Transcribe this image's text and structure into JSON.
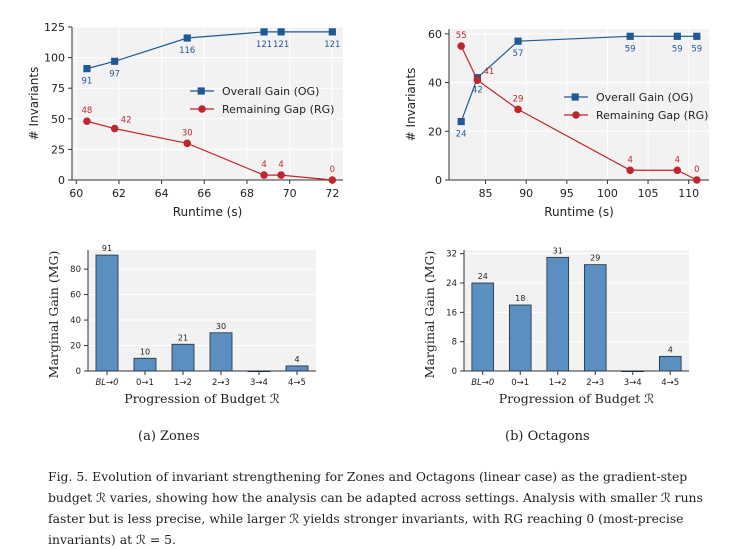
{
  "panels": {
    "a": "(a) Zones",
    "b": "(b) Octagons"
  },
  "caption": {
    "lead": "Fig. 5.",
    "text": "Evolution of invariant strengthening for Zones and Octagons (linear case) as the gradient-step budget ℛ varies, showing how the analysis can be adapted across settings. Analysis with smaller ℛ runs faster but is less precise, while larger ℛ yields stronger invariants, with RG reaching 0 (most-precise invariants) at ℛ = 5."
  },
  "colors": {
    "og": "#1f5a96",
    "rg": "#c0272d",
    "bar": "#5b8fc0",
    "plot_bg": "#f2f2f2"
  },
  "chart_data": [
    {
      "id": "zones_runtime",
      "type": "line",
      "xlabel": "Runtime (s)",
      "ylabel": "# Invariants",
      "xlim": [
        59.8,
        72.5
      ],
      "ylim": [
        0,
        125
      ],
      "xticks": [
        60,
        62,
        64,
        66,
        68,
        70,
        72
      ],
      "yticks": [
        0,
        25,
        50,
        75,
        100,
        125
      ],
      "legend_position": "center-right",
      "series": [
        {
          "name": "Overall Gain (OG)",
          "marker": "square",
          "x": [
            60.5,
            61.8,
            65.2,
            68.8,
            69.6,
            72.0
          ],
          "y": [
            91,
            97,
            116,
            121,
            121,
            121
          ],
          "labels": [
            "91",
            "97",
            "116",
            "121",
            "121",
            "121"
          ]
        },
        {
          "name": "Remaining Gap (RG)",
          "marker": "circle",
          "x": [
            60.5,
            61.8,
            65.2,
            68.8,
            69.6,
            72.0
          ],
          "y": [
            48,
            42,
            30,
            4,
            4,
            0
          ],
          "labels": [
            "48",
            "42",
            "30",
            "4",
            "4",
            "0"
          ]
        }
      ]
    },
    {
      "id": "octagons_runtime",
      "type": "line",
      "xlabel": "Runtime (s)",
      "ylabel": "# Invariants",
      "xlim": [
        80.5,
        112.5
      ],
      "ylim": [
        0,
        62
      ],
      "xticks": [
        85,
        90,
        95,
        100,
        105,
        110
      ],
      "yticks": [
        0,
        20,
        40,
        60
      ],
      "legend_position": "center-right",
      "series": [
        {
          "name": "Overall Gain (OG)",
          "marker": "square",
          "x": [
            82.0,
            84.0,
            89.0,
            102.8,
            108.6,
            111.0
          ],
          "y": [
            24,
            42,
            57,
            59,
            59,
            59
          ],
          "labels": [
            "24",
            "42",
            "57",
            "59",
            "59",
            "59"
          ]
        },
        {
          "name": "Remaining Gap (RG)",
          "marker": "circle",
          "x": [
            82.0,
            84.0,
            89.0,
            102.8,
            108.6,
            111.0
          ],
          "y": [
            55,
            41,
            29,
            4,
            4,
            0
          ],
          "labels": [
            "55",
            "41",
            "29",
            "4",
            "4",
            "0"
          ]
        }
      ]
    },
    {
      "id": "zones_budget",
      "type": "bar",
      "xlabel": "Progression of Budget ℛ",
      "ylabel": "Marginal Gain (MG)",
      "ylim": [
        0,
        95
      ],
      "yticks": [
        0,
        20,
        40,
        60,
        80
      ],
      "categories": [
        "BL→0",
        "0→1",
        "1→2",
        "2→3",
        "3→4",
        "4→5"
      ],
      "values": [
        91,
        10,
        21,
        30,
        0,
        4
      ],
      "labels": [
        "91",
        "10",
        "21",
        "30",
        "",
        "4"
      ]
    },
    {
      "id": "octagons_budget",
      "type": "bar",
      "xlabel": "Progression of Budget ℛ",
      "ylabel": "Marginal Gain (MG)",
      "ylim": [
        0,
        33
      ],
      "yticks": [
        0,
        8,
        16,
        24,
        32
      ],
      "categories": [
        "BL→0",
        "0→1",
        "1→2",
        "2→3",
        "3→4",
        "4→5"
      ],
      "values": [
        24,
        18,
        31,
        29,
        0,
        4
      ],
      "labels": [
        "24",
        "18",
        "31",
        "29",
        "",
        "4"
      ]
    }
  ]
}
